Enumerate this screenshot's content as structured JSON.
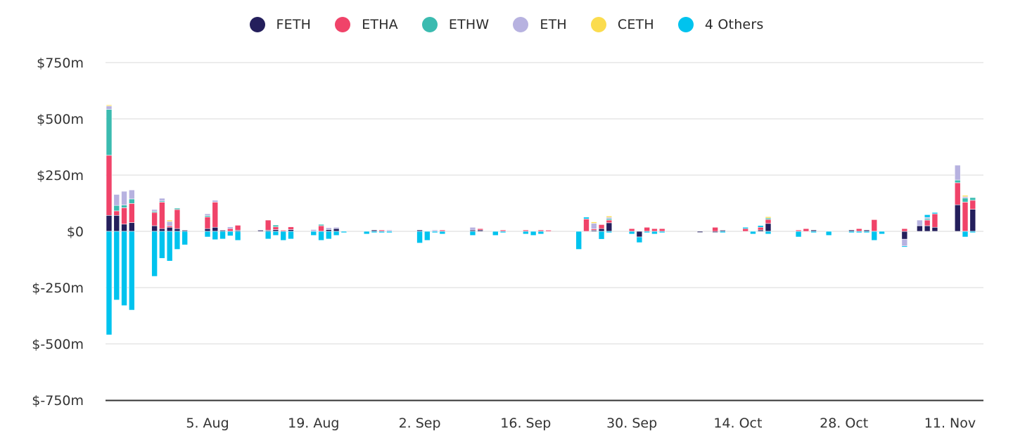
{
  "legend": [
    {
      "name": "FETH",
      "color": "#241f5c"
    },
    {
      "name": "ETHA",
      "color": "#f04369"
    },
    {
      "name": "ETHW",
      "color": "#3bbbb0"
    },
    {
      "name": "ETH",
      "color": "#b7b2e0"
    },
    {
      "name": "CETH",
      "color": "#fbdc4e"
    },
    {
      "name": "4 Others",
      "color": "#00c3ee"
    }
  ],
  "chart_data": {
    "type": "bar",
    "stacked": true,
    "title": "",
    "xlabel": "",
    "ylabel": "",
    "ylim": [
      -750,
      750
    ],
    "yticks": [
      750,
      500,
      250,
      0,
      -250,
      -500,
      -750
    ],
    "ytick_labels": [
      "$750m",
      "$500m",
      "$250m",
      "$0",
      "$-250m",
      "$-500m",
      "$-750m"
    ],
    "xtick_labels": [
      {
        "label": "5. Aug",
        "day": 13
      },
      {
        "label": "19. Aug",
        "day": 27
      },
      {
        "label": "2. Sep",
        "day": 41
      },
      {
        "label": "16. Sep",
        "day": 55
      },
      {
        "label": "30. Sep",
        "day": 69
      },
      {
        "label": "14. Oct",
        "day": 83
      },
      {
        "label": "28. Oct",
        "day": 97
      },
      {
        "label": "11. Nov",
        "day": 111
      }
    ],
    "grid": true,
    "legend_position": "top-center",
    "series_order": [
      "FETH",
      "ETHA",
      "ETHW",
      "ETH",
      "CETH",
      "4 Others"
    ],
    "units": "$m",
    "bars": [
      {
        "day": 0,
        "FETH": 71,
        "ETHA": 267,
        "ETHW": 204,
        "ETH": 15,
        "CETH": 5,
        "4 Others": -460
      },
      {
        "day": 1,
        "FETH": 71,
        "ETHA": 20,
        "ETHW": 24,
        "ETH": 49,
        "CETH": 0,
        "4 Others": -305
      },
      {
        "day": 2,
        "FETH": 32,
        "ETHA": 73,
        "ETHW": 12,
        "ETH": 61,
        "CETH": 0,
        "4 Others": -330
      },
      {
        "day": 3,
        "FETH": 39,
        "ETHA": 85,
        "ETHW": 20,
        "ETH": 40,
        "CETH": 0,
        "4 Others": -350
      },
      {
        "day": 6,
        "FETH": 25,
        "ETHA": 59,
        "ETHW": 5,
        "ETH": 8,
        "CETH": 0,
        "4 Others": -200
      },
      {
        "day": 7,
        "FETH": 12,
        "ETHA": 118,
        "ETHW": 5,
        "ETH": 12,
        "CETH": 0,
        "4 Others": -120
      },
      {
        "day": 8,
        "FETH": 18,
        "ETHA": 6,
        "ETHW": 0,
        "ETH": 20,
        "CETH": 6,
        "4 Others": -132
      },
      {
        "day": 9,
        "FETH": 12,
        "ETHA": 85,
        "ETHW": 6,
        "ETH": 0,
        "CETH": 0,
        "4 Others": -80
      },
      {
        "day": 10,
        "FETH": 5,
        "ETHA": 0,
        "ETHW": 0,
        "ETH": 0,
        "CETH": 0,
        "4 Others": -60
      },
      {
        "day": 13,
        "FETH": 12,
        "ETHA": 52,
        "ETHW": 6,
        "ETH": 8,
        "CETH": 0,
        "4 Others": -25
      },
      {
        "day": 14,
        "FETH": 18,
        "ETHA": 112,
        "ETHW": 0,
        "ETH": 8,
        "CETH": 0,
        "4 Others": -37
      },
      {
        "day": 15,
        "FETH": 5,
        "ETHA": 0,
        "ETHW": 0,
        "ETH": 0,
        "CETH": 0,
        "4 Others": -34
      },
      {
        "day": 16,
        "FETH": 0,
        "ETHA": 12,
        "ETHW": 0,
        "ETH": 8,
        "CETH": 0,
        "4 Others": -20
      },
      {
        "day": 17,
        "FETH": 5,
        "ETHA": 22,
        "ETHW": 0,
        "ETH": 0,
        "CETH": 0,
        "4 Others": -40
      },
      {
        "day": 20,
        "FETH": 5,
        "ETHA": 0,
        "ETHW": 0,
        "ETH": 0,
        "CETH": 0,
        "4 Others": 0
      },
      {
        "day": 21,
        "FETH": 5,
        "ETHA": 45,
        "ETHW": 0,
        "ETH": 0,
        "CETH": 0,
        "4 Others": -34
      },
      {
        "day": 22,
        "FETH": 8,
        "ETHA": 12,
        "ETHW": 8,
        "ETH": 0,
        "CETH": 0,
        "4 Others": -18
      },
      {
        "day": 23,
        "FETH": 0,
        "ETHA": 5,
        "ETHW": 0,
        "ETH": 0,
        "CETH": 0,
        "4 Others": -40
      },
      {
        "day": 24,
        "FETH": 8,
        "ETHA": 12,
        "ETHW": 0,
        "ETH": 0,
        "CETH": 0,
        "4 Others": -34
      },
      {
        "day": 27,
        "FETH": 0,
        "ETHA": 0,
        "ETHW": 0,
        "ETH": 8,
        "CETH": 0,
        "4 Others": -18
      },
      {
        "day": 28,
        "FETH": 0,
        "ETHA": 25,
        "ETHW": 6,
        "ETH": 0,
        "CETH": 0,
        "4 Others": -40
      },
      {
        "day": 29,
        "FETH": 8,
        "ETHA": 0,
        "ETHW": 0,
        "ETH": 8,
        "CETH": 0,
        "4 Others": -34
      },
      {
        "day": 30,
        "FETH": 12,
        "ETHA": 0,
        "ETHW": 0,
        "ETH": 6,
        "CETH": 0,
        "4 Others": -18
      },
      {
        "day": 31,
        "FETH": 0,
        "ETHA": 0,
        "ETHW": 0,
        "ETH": 0,
        "CETH": 0,
        "4 Others": -6
      },
      {
        "day": 34,
        "FETH": 0,
        "ETHA": 0,
        "ETHW": 0,
        "ETH": 0,
        "CETH": 0,
        "4 Others": -12
      },
      {
        "day": 35,
        "FETH": 6,
        "ETHA": 0,
        "ETHW": 0,
        "ETH": 0,
        "CETH": 0,
        "4 Others": -6
      },
      {
        "day": 36,
        "FETH": 0,
        "ETHA": 6,
        "ETHW": 0,
        "ETH": 0,
        "CETH": 0,
        "4 Others": -6
      },
      {
        "day": 37,
        "FETH": 0,
        "ETHA": 0,
        "ETHW": 0,
        "ETH": 6,
        "CETH": 0,
        "4 Others": -6
      },
      {
        "day": 41,
        "FETH": 6,
        "ETHA": 0,
        "ETHW": 0,
        "ETH": 0,
        "CETH": 0,
        "4 Others": -52
      },
      {
        "day": 42,
        "FETH": 0,
        "ETHA": 0,
        "ETHW": 0,
        "ETH": 0,
        "CETH": 0,
        "4 Others": -40
      },
      {
        "day": 43,
        "FETH": 0,
        "ETHA": 0,
        "ETHW": 0,
        "ETH": 6,
        "CETH": 0,
        "4 Others": -6
      },
      {
        "day": 44,
        "FETH": 0,
        "ETHA": 6,
        "ETHW": 0,
        "ETH": 0,
        "CETH": 0,
        "4 Others": -12
      },
      {
        "day": 48,
        "FETH": 6,
        "ETHA": 0,
        "ETHW": 0,
        "ETH": 12,
        "CETH": 0,
        "4 Others": -18
      },
      {
        "day": 49,
        "FETH": 6,
        "ETHA": 6,
        "ETHW": 0,
        "ETH": 0,
        "CETH": 0,
        "4 Others": 0
      },
      {
        "day": 51,
        "FETH": 0,
        "ETHA": 0,
        "ETHW": 0,
        "ETH": 0,
        "CETH": 0,
        "4 Others": -18
      },
      {
        "day": 52,
        "FETH": 0,
        "ETHA": 6,
        "ETHW": 0,
        "ETH": 0,
        "CETH": 0,
        "4 Others": -6
      },
      {
        "day": 55,
        "FETH": 0,
        "ETHA": 6,
        "ETHW": 0,
        "ETH": 0,
        "CETH": 0,
        "4 Others": -12
      },
      {
        "day": 56,
        "FETH": 0,
        "ETHA": 0,
        "ETHW": 0,
        "ETH": 0,
        "CETH": 0,
        "4 Others": -18
      },
      {
        "day": 57,
        "FETH": 0,
        "ETHA": 6,
        "ETHW": 0,
        "ETH": 0,
        "CETH": 0,
        "4 Others": -12
      },
      {
        "day": 58,
        "FETH": 0,
        "ETHA": 5,
        "ETHW": 0,
        "ETH": 0,
        "CETH": 0,
        "4 Others": 0
      },
      {
        "day": 62,
        "FETH": 0,
        "ETHA": 0,
        "ETHW": 0,
        "ETH": 0,
        "CETH": 0,
        "4 Others": -80
      },
      {
        "day": 63,
        "FETH": 0,
        "ETHA": 55,
        "ETHW": 0,
        "ETH": 0,
        "CETH": 0,
        "4 Others": 8
      },
      {
        "day": 64,
        "FETH": 5,
        "ETHA": 6,
        "ETHW": 0,
        "ETH": 25,
        "CETH": 6,
        "4 Others": 0
      },
      {
        "day": 65,
        "FETH": 12,
        "ETHA": 18,
        "ETHW": 0,
        "ETH": 0,
        "CETH": 0,
        "4 Others": -35
      },
      {
        "day": 66,
        "FETH": 38,
        "ETHA": 12,
        "ETHW": 6,
        "ETH": 6,
        "CETH": 6,
        "4 Others": -6
      },
      {
        "day": 69,
        "FETH": 0,
        "ETHA": 12,
        "ETHW": 0,
        "ETH": 0,
        "CETH": 0,
        "4 Others": -12
      },
      {
        "day": 70,
        "FETH": -25,
        "ETHA": 0,
        "ETHW": 0,
        "ETH": 0,
        "CETH": 0,
        "4 Others": -25
      },
      {
        "day": 71,
        "FETH": 0,
        "ETHA": 18,
        "ETHW": 0,
        "ETH": 0,
        "CETH": 0,
        "4 Others": -6
      },
      {
        "day": 72,
        "FETH": 0,
        "ETHA": 12,
        "ETHW": 0,
        "ETH": 0,
        "CETH": 0,
        "4 Others": -12
      },
      {
        "day": 73,
        "FETH": 0,
        "ETHA": 12,
        "ETHW": 0,
        "ETH": 0,
        "CETH": 0,
        "4 Others": -6
      },
      {
        "day": 78,
        "FETH": -5,
        "ETHA": 0,
        "ETHW": 0,
        "ETH": 0,
        "CETH": 0,
        "4 Others": 0
      },
      {
        "day": 80,
        "FETH": -5,
        "ETHA": 18,
        "ETHW": 0,
        "ETH": 0,
        "CETH": 0,
        "4 Others": 0
      },
      {
        "day": 81,
        "FETH": 5,
        "ETHA": 0,
        "ETHW": 0,
        "ETH": 0,
        "CETH": 0,
        "4 Others": -6
      },
      {
        "day": 84,
        "FETH": 0,
        "ETHA": 12,
        "ETHW": 0,
        "ETH": 0,
        "CETH": 0,
        "4 Others": 6
      },
      {
        "day": 85,
        "FETH": 0,
        "ETHA": 0,
        "ETHW": 0,
        "ETH": 0,
        "CETH": 0,
        "4 Others": -12
      },
      {
        "day": 86,
        "FETH": 6,
        "ETHA": 12,
        "ETHW": 0,
        "ETH": 0,
        "CETH": 0,
        "4 Others": 8
      },
      {
        "day": 87,
        "FETH": 35,
        "ETHA": 18,
        "ETHW": 6,
        "ETH": 0,
        "CETH": 6,
        "4 Others": -12
      },
      {
        "day": 91,
        "FETH": 0,
        "ETHA": 6,
        "ETHW": 0,
        "ETH": 0,
        "CETH": 0,
        "4 Others": -25
      },
      {
        "day": 92,
        "FETH": 0,
        "ETHA": 12,
        "ETHW": 0,
        "ETH": 0,
        "CETH": 0,
        "4 Others": 0
      },
      {
        "day": 93,
        "FETH": 6,
        "ETHA": 0,
        "ETHW": 0,
        "ETH": 0,
        "CETH": 0,
        "4 Others": -6
      },
      {
        "day": 95,
        "FETH": 0,
        "ETHA": 0,
        "ETHW": 0,
        "ETH": 0,
        "CETH": 0,
        "4 Others": -18
      },
      {
        "day": 98,
        "FETH": 6,
        "ETHA": 0,
        "ETHW": 0,
        "ETH": 0,
        "CETH": 0,
        "4 Others": -6
      },
      {
        "day": 99,
        "FETH": 0,
        "ETHA": 12,
        "ETHW": 0,
        "ETH": 0,
        "CETH": 0,
        "4 Others": -6
      },
      {
        "day": 100,
        "FETH": 6,
        "ETHA": 0,
        "ETHW": 0,
        "ETH": 0,
        "CETH": 0,
        "4 Others": -6
      },
      {
        "day": 101,
        "FETH": 0,
        "ETHA": 52,
        "ETHW": 0,
        "ETH": 0,
        "CETH": 0,
        "4 Others": -40
      },
      {
        "day": 102,
        "FETH": 0,
        "ETHA": 0,
        "ETHW": 0,
        "ETH": 0,
        "CETH": 0,
        "4 Others": -12
      },
      {
        "day": 105,
        "FETH": -35,
        "ETHA": 12,
        "ETHW": 0,
        "ETH": -30,
        "CETH": 0,
        "4 Others": -5
      },
      {
        "day": 107,
        "FETH": 25,
        "ETHA": 0,
        "ETHW": 0,
        "ETH": 25,
        "CETH": 0,
        "4 Others": 0
      },
      {
        "day": 108,
        "FETH": 25,
        "ETHA": 25,
        "ETHW": 6,
        "ETH": 6,
        "CETH": 0,
        "4 Others": 12
      },
      {
        "day": 109,
        "FETH": 18,
        "ETHA": 60,
        "ETHW": 0,
        "ETH": 0,
        "CETH": 0,
        "4 Others": 6
      },
      {
        "day": 112,
        "FETH": 118,
        "ETHA": 98,
        "ETHW": 12,
        "ETH": 66,
        "CETH": 0,
        "4 Others": 0
      },
      {
        "day": 113,
        "FETH": 0,
        "ETHA": 130,
        "ETHW": 18,
        "ETH": 6,
        "CETH": 6,
        "4 Others": -25
      },
      {
        "day": 114,
        "FETH": 98,
        "ETHA": 40,
        "ETHW": 12,
        "ETH": 0,
        "CETH": 0,
        "4 Others": -6
      }
    ]
  }
}
